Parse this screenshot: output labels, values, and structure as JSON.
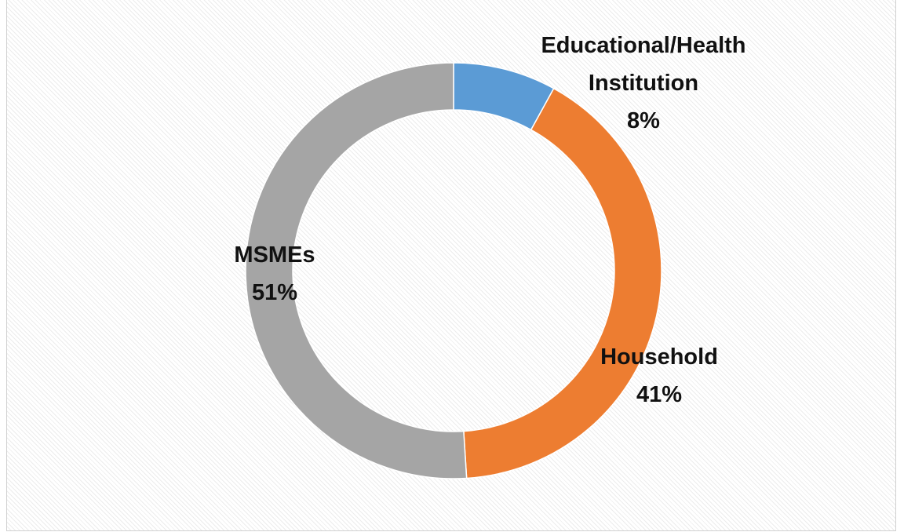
{
  "chart_data": {
    "type": "donut",
    "categories": [
      "Educational/Health Institution",
      "Household",
      "MSMEs"
    ],
    "values": [
      8,
      41,
      51
    ],
    "value_labels": [
      "8%",
      "41%",
      "51%"
    ],
    "colors": [
      "#5b9bd5",
      "#ed7d31",
      "#a5a5a5"
    ]
  }
}
